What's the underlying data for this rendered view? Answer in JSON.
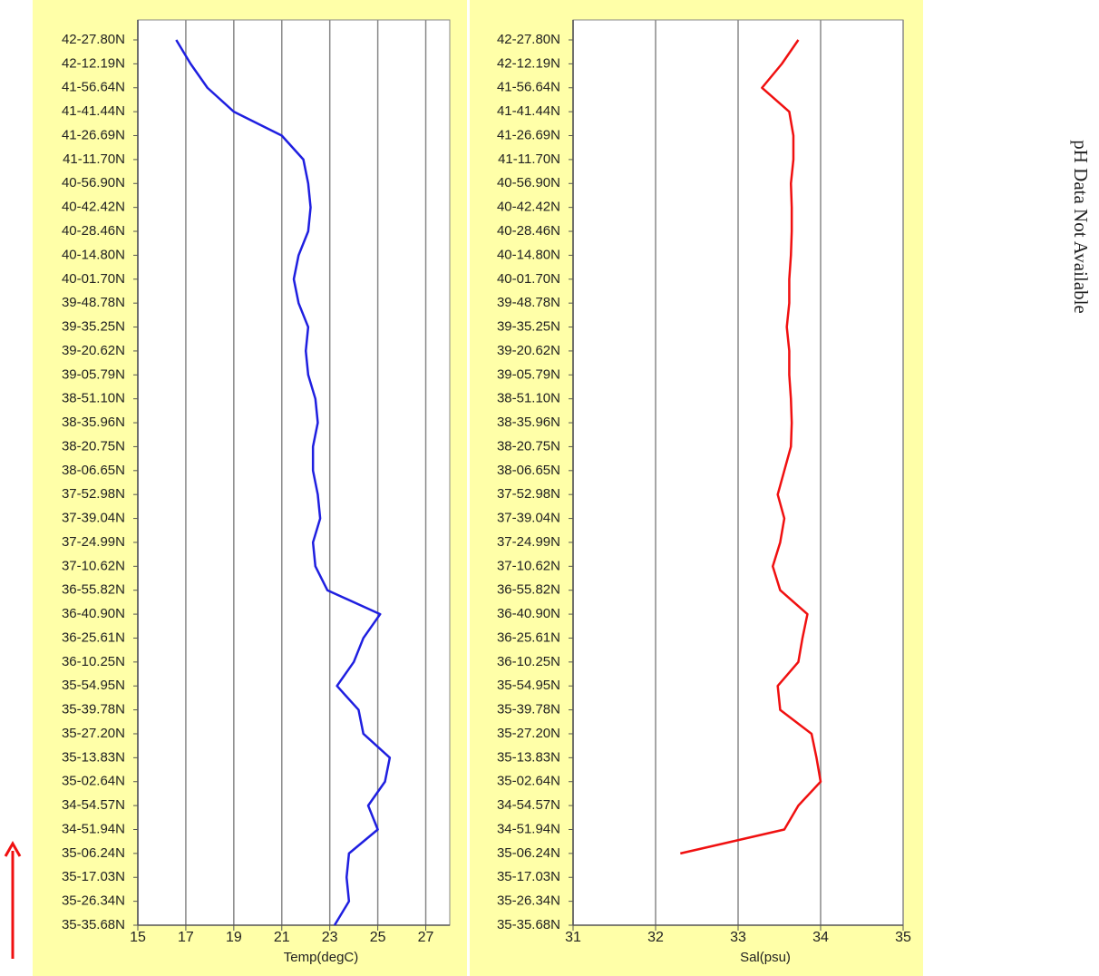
{
  "chart_data": [
    {
      "type": "line",
      "orientation": "horizontal",
      "xlabel": "Temp(degC)",
      "categories": [
        "42-27.80N",
        "42-12.19N",
        "41-56.64N",
        "41-41.44N",
        "41-26.69N",
        "41-11.70N",
        "40-56.90N",
        "40-42.42N",
        "40-28.46N",
        "40-14.80N",
        "40-01.70N",
        "39-48.78N",
        "39-35.25N",
        "39-20.62N",
        "39-05.79N",
        "38-51.10N",
        "38-35.96N",
        "38-20.75N",
        "38-06.65N",
        "37-52.98N",
        "37-39.04N",
        "37-24.99N",
        "37-10.62N",
        "36-55.82N",
        "36-40.90N",
        "36-25.61N",
        "36-10.25N",
        "35-54.95N",
        "35-39.78N",
        "35-27.20N",
        "35-13.83N",
        "35-02.64N",
        "34-54.57N",
        "34-51.94N",
        "35-06.24N",
        "35-17.03N",
        "35-26.34N",
        "35-35.68N"
      ],
      "series": [
        {
          "color": "#1f1fe0",
          "values": [
            16.6,
            17.2,
            17.9,
            19.0,
            21.0,
            21.9,
            22.1,
            22.2,
            22.1,
            21.7,
            21.5,
            21.7,
            22.1,
            22.0,
            22.1,
            22.4,
            22.5,
            22.3,
            22.3,
            22.5,
            22.6,
            22.3,
            22.4,
            22.9,
            25.1,
            24.4,
            24.0,
            23.3,
            24.2,
            24.4,
            25.5,
            25.3,
            24.6,
            25.0,
            23.8,
            23.7,
            23.8,
            23.2
          ]
        }
      ],
      "xlim": [
        15,
        28
      ],
      "xticks": [
        15,
        17,
        19,
        21,
        23,
        25,
        27
      ],
      "grid": true
    },
    {
      "type": "line",
      "orientation": "horizontal",
      "xlabel": "Sal(psu)",
      "categories": [
        "42-27.80N",
        "42-12.19N",
        "41-56.64N",
        "41-41.44N",
        "41-26.69N",
        "41-11.70N",
        "40-56.90N",
        "40-42.42N",
        "40-28.46N",
        "40-14.80N",
        "40-01.70N",
        "39-48.78N",
        "39-35.25N",
        "39-20.62N",
        "39-05.79N",
        "38-51.10N",
        "38-35.96N",
        "38-20.75N",
        "38-06.65N",
        "37-52.98N",
        "37-39.04N",
        "37-24.99N",
        "37-10.62N",
        "36-55.82N",
        "36-40.90N",
        "36-25.61N",
        "36-10.25N",
        "35-54.95N",
        "35-39.78N",
        "35-27.20N",
        "35-13.83N",
        "35-02.64N",
        "34-54.57N",
        "34-51.94N",
        "35-06.24N",
        "35-17.03N",
        "35-26.34N",
        "35-35.68N"
      ],
      "series": [
        {
          "color": "#f01010",
          "values": [
            33.73,
            33.53,
            33.29,
            33.62,
            33.67,
            33.67,
            33.64,
            33.65,
            33.65,
            33.64,
            33.62,
            33.62,
            33.59,
            33.62,
            33.62,
            33.64,
            33.65,
            33.64,
            33.56,
            33.48,
            33.56,
            33.51,
            33.42,
            33.51,
            33.84,
            33.78,
            33.73,
            33.48,
            33.51,
            33.89,
            33.95,
            34.0,
            33.73,
            33.56,
            32.3,
            null,
            null,
            null
          ]
        }
      ],
      "xlim": [
        31,
        35
      ],
      "xticks": [
        31,
        32,
        33,
        34,
        35
      ],
      "grid": true
    }
  ],
  "side_note": "pH Data Not Available"
}
